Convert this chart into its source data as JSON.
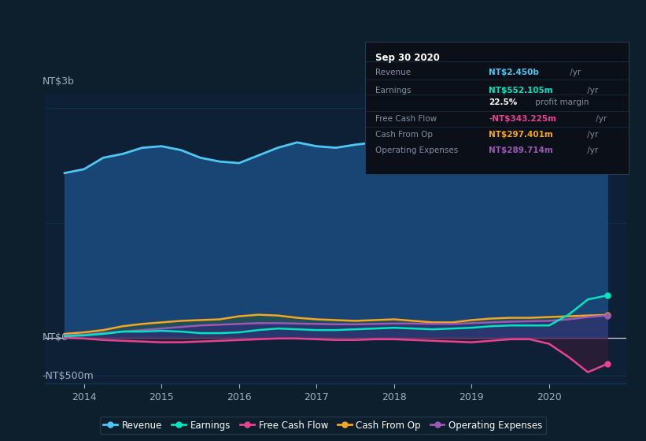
{
  "bg_color": "#0d1f2d",
  "plot_bg_color": "#0d2035",
  "grid_color": "#1a3a55",
  "text_color": "#a0b0c0",
  "ylabel_top": "NT$3b",
  "ylabel_bottom": "-NT$500m",
  "ylabel_zero": "NT$0",
  "x_ticks": [
    2014,
    2015,
    2016,
    2017,
    2018,
    2019,
    2020
  ],
  "xlim": [
    2013.5,
    2021.0
  ],
  "ylim": [
    -600,
    3200
  ],
  "series": {
    "Revenue": {
      "color": "#4dc8f5",
      "fill_color": "#1a4a7a",
      "x": [
        2013.75,
        2014.0,
        2014.25,
        2014.5,
        2014.75,
        2015.0,
        2015.25,
        2015.5,
        2015.75,
        2016.0,
        2016.25,
        2016.5,
        2016.75,
        2017.0,
        2017.25,
        2017.5,
        2017.75,
        2018.0,
        2018.25,
        2018.5,
        2018.75,
        2019.0,
        2019.25,
        2019.5,
        2019.75,
        2020.0,
        2020.25,
        2020.5,
        2020.75
      ],
      "y": [
        2150,
        2200,
        2350,
        2400,
        2480,
        2500,
        2450,
        2350,
        2300,
        2280,
        2380,
        2480,
        2550,
        2500,
        2480,
        2520,
        2550,
        2580,
        2540,
        2550,
        2560,
        2600,
        2650,
        2700,
        2750,
        2780,
        2700,
        2500,
        2450
      ]
    },
    "Earnings": {
      "color": "#00e5c0",
      "x": [
        2013.75,
        2014.0,
        2014.25,
        2014.5,
        2014.75,
        2015.0,
        2015.25,
        2015.5,
        2015.75,
        2016.0,
        2016.25,
        2016.5,
        2016.75,
        2017.0,
        2017.25,
        2017.5,
        2017.75,
        2018.0,
        2018.25,
        2018.5,
        2018.75,
        2019.0,
        2019.25,
        2019.5,
        2019.75,
        2020.0,
        2020.25,
        2020.5,
        2020.75
      ],
      "y": [
        20,
        30,
        50,
        80,
        80,
        90,
        80,
        60,
        60,
        70,
        100,
        120,
        110,
        100,
        100,
        110,
        120,
        130,
        120,
        110,
        120,
        130,
        150,
        160,
        160,
        160,
        300,
        500,
        552
      ]
    },
    "Free Cash Flow": {
      "color": "#e84393",
      "x": [
        2013.75,
        2014.0,
        2014.25,
        2014.5,
        2014.75,
        2015.0,
        2015.25,
        2015.5,
        2015.75,
        2016.0,
        2016.25,
        2016.5,
        2016.75,
        2017.0,
        2017.25,
        2017.5,
        2017.75,
        2018.0,
        2018.25,
        2018.5,
        2018.75,
        2019.0,
        2019.25,
        2019.5,
        2019.75,
        2020.0,
        2020.25,
        2020.5,
        2020.75
      ],
      "y": [
        0,
        -10,
        -30,
        -40,
        -50,
        -60,
        -60,
        -50,
        -40,
        -30,
        -20,
        -10,
        -10,
        -20,
        -30,
        -30,
        -20,
        -20,
        -30,
        -40,
        -50,
        -60,
        -40,
        -20,
        -20,
        -80,
        -250,
        -450,
        -343
      ]
    },
    "Cash From Op": {
      "color": "#f5a623",
      "x": [
        2013.75,
        2014.0,
        2014.25,
        2014.5,
        2014.75,
        2015.0,
        2015.25,
        2015.5,
        2015.75,
        2016.0,
        2016.25,
        2016.5,
        2016.75,
        2017.0,
        2017.25,
        2017.5,
        2017.75,
        2018.0,
        2018.25,
        2018.5,
        2018.75,
        2019.0,
        2019.25,
        2019.5,
        2019.75,
        2020.0,
        2020.25,
        2020.5,
        2020.75
      ],
      "y": [
        50,
        70,
        100,
        150,
        180,
        200,
        220,
        230,
        240,
        280,
        300,
        290,
        260,
        240,
        230,
        220,
        230,
        240,
        220,
        200,
        200,
        230,
        250,
        260,
        260,
        270,
        280,
        290,
        297
      ]
    },
    "Operating Expenses": {
      "color": "#9b59b6",
      "x": [
        2013.75,
        2014.0,
        2014.25,
        2014.5,
        2014.75,
        2015.0,
        2015.25,
        2015.5,
        2015.75,
        2016.0,
        2016.25,
        2016.5,
        2016.75,
        2017.0,
        2017.25,
        2017.5,
        2017.75,
        2018.0,
        2018.25,
        2018.5,
        2018.75,
        2019.0,
        2019.25,
        2019.5,
        2019.75,
        2020.0,
        2020.25,
        2020.5,
        2020.75
      ],
      "y": [
        30,
        40,
        60,
        80,
        100,
        120,
        140,
        160,
        170,
        180,
        190,
        190,
        185,
        180,
        175,
        175,
        180,
        185,
        185,
        180,
        180,
        190,
        200,
        210,
        215,
        220,
        240,
        270,
        290
      ]
    }
  },
  "tooltip": {
    "title": "Sep 30 2020",
    "labels": [
      "Revenue",
      "Earnings",
      "",
      "Free Cash Flow",
      "Cash From Op",
      "Operating Expenses"
    ],
    "values": [
      "NT$2.450b",
      "NT$552.105m",
      "22.5%",
      "-NT$343.225m",
      "NT$297.401m",
      "NT$289.714m"
    ],
    "suffixes": [
      " /yr",
      " /yr",
      " profit margin",
      " /yr",
      " /yr",
      " /yr"
    ],
    "colors": [
      "#4dc8f5",
      "#00e5c0",
      "#ffffff",
      "#e84393",
      "#f5a623",
      "#9b59b6"
    ]
  },
  "legend": [
    {
      "label": "Revenue",
      "color": "#4dc8f5"
    },
    {
      "label": "Earnings",
      "color": "#00e5c0"
    },
    {
      "label": "Free Cash Flow",
      "color": "#e84393"
    },
    {
      "label": "Cash From Op",
      "color": "#f5a623"
    },
    {
      "label": "Operating Expenses",
      "color": "#9b59b6"
    }
  ]
}
